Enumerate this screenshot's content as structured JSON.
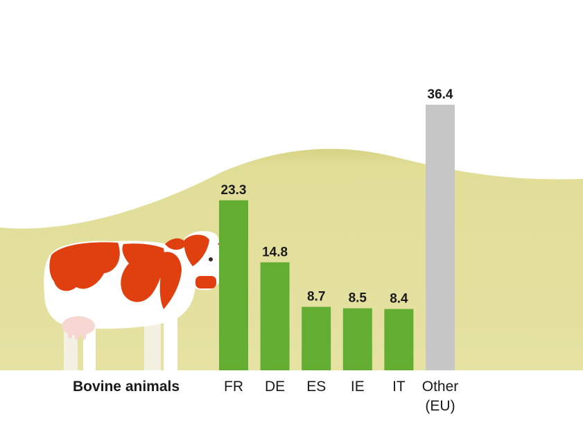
{
  "chart_data": {
    "type": "bar",
    "series_label": "Bovine animals",
    "categories": [
      "FR",
      "DE",
      "ES",
      "IE",
      "IT",
      "Other (EU)"
    ],
    "category_lines": [
      [
        "FR"
      ],
      [
        "DE"
      ],
      [
        "ES"
      ],
      [
        "IE"
      ],
      [
        "IT"
      ],
      [
        "Other",
        "(EU)"
      ]
    ],
    "values": [
      23.3,
      14.8,
      8.7,
      8.5,
      8.4,
      36.4
    ],
    "value_labels": [
      "23.3",
      "14.8",
      "8.7",
      "8.5",
      "8.4",
      "36.4"
    ],
    "colors": [
      "#62ad32",
      "#62ad32",
      "#62ad32",
      "#62ad32",
      "#62ad32",
      "#c6c6c6"
    ],
    "ylim": [
      0,
      36.4
    ],
    "grid": false,
    "legend": "none"
  },
  "colors": {
    "hill": "#e3e09b",
    "hill_dark": "#d6d27e",
    "cow_spot": "#e0400f",
    "cow_body": "#ffffff",
    "udder": "#f6d7d2"
  }
}
